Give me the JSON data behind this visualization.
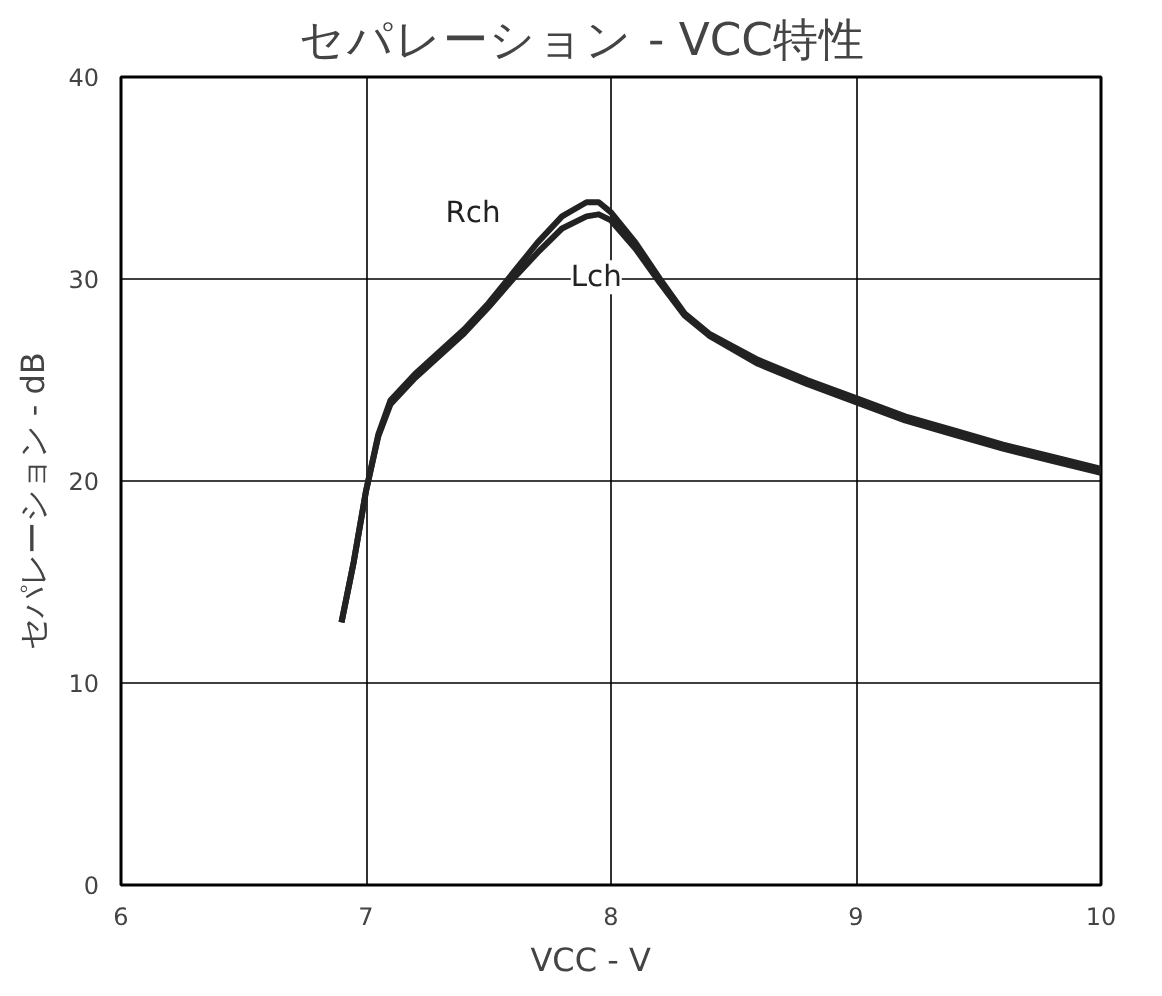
{
  "chart_data": {
    "type": "line",
    "title": "セパレーション   -   VCC特性",
    "xlabel": "VCC   -   V",
    "ylabel": "セパレーション   -   dB",
    "xlim": [
      6,
      10
    ],
    "ylim": [
      0,
      40
    ],
    "xticks": [
      6,
      7,
      8,
      9,
      10
    ],
    "yticks": [
      0,
      10,
      20,
      30,
      40
    ],
    "grid": true,
    "marker": "none",
    "line_style": "solid",
    "series": [
      {
        "name": "Rch",
        "color": "#222222",
        "x": [
          6.9,
          6.95,
          7.0,
          7.05,
          7.1,
          7.2,
          7.3,
          7.4,
          7.5,
          7.6,
          7.7,
          7.8,
          7.9,
          7.95,
          8.0,
          8.1,
          8.2,
          8.3,
          8.4,
          8.6,
          8.8,
          9.0,
          9.2,
          9.4,
          9.6,
          9.8,
          10
        ],
        "values": [
          13,
          16,
          19.5,
          22.3,
          24,
          25.3,
          26.4,
          27.5,
          28.8,
          30.3,
          31.8,
          33.1,
          33.8,
          33.8,
          33.3,
          31.8,
          30,
          28.3,
          27.3,
          26,
          25,
          24.1,
          23.2,
          22.5,
          21.8,
          21.2,
          20.6
        ]
      },
      {
        "name": "Lch",
        "color": "#222222",
        "x": [
          6.9,
          6.95,
          7.0,
          7.05,
          7.1,
          7.2,
          7.3,
          7.4,
          7.5,
          7.6,
          7.7,
          7.8,
          7.9,
          7.95,
          8.0,
          8.1,
          8.2,
          8.3,
          8.4,
          8.6,
          8.8,
          9.0,
          9.2,
          9.4,
          9.6,
          9.8,
          10
        ],
        "values": [
          13,
          16,
          19.5,
          22.2,
          23.8,
          25.1,
          26.2,
          27.3,
          28.6,
          30,
          31.3,
          32.5,
          33.1,
          33.2,
          32.9,
          31.5,
          29.8,
          28.2,
          27.2,
          25.8,
          24.8,
          23.9,
          23,
          22.3,
          21.6,
          21,
          20.4
        ]
      }
    ]
  }
}
